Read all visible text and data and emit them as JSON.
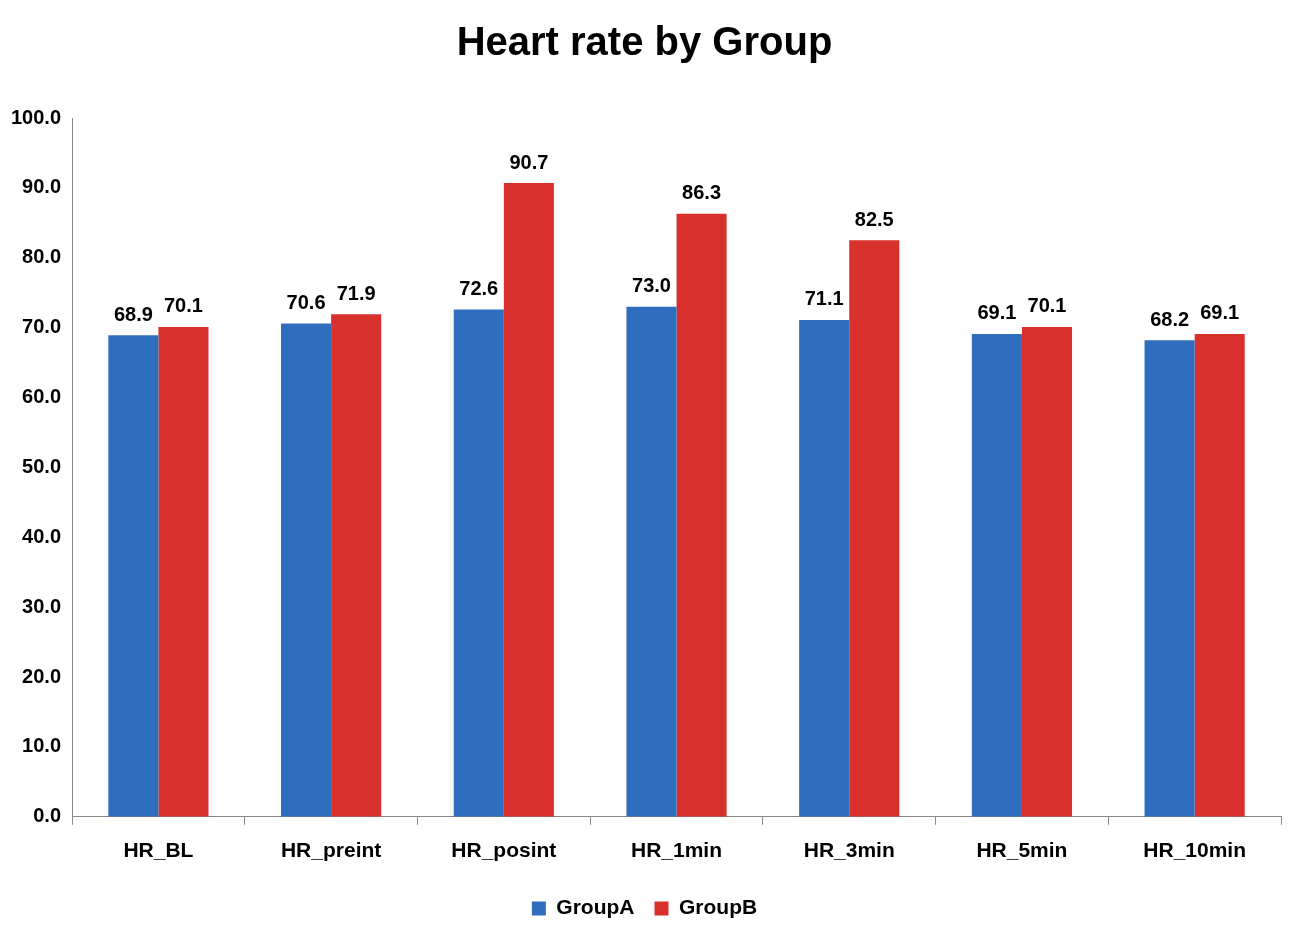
{
  "chart_data": {
    "type": "bar",
    "title": "Heart rate by Group",
    "categories": [
      "HR_BL",
      "HR_preint",
      "HR_posint",
      "HR_1min",
      "HR_3min",
      "HR_5min",
      "HR_10min"
    ],
    "series": [
      {
        "name": "GroupA",
        "color": "#2f6ebf",
        "values": [
          68.9,
          70.6,
          72.6,
          73.0,
          71.1,
          69.1,
          68.2
        ],
        "value_labels": [
          "68.9",
          "70.6",
          "72.6",
          "73.0",
          "71.1",
          "69.1",
          "68.2"
        ]
      },
      {
        "name": "GroupB",
        "color": "#d8312d",
        "values": [
          70.1,
          71.9,
          90.7,
          86.3,
          82.5,
          70.1,
          69.1
        ],
        "value_labels": [
          "70.1",
          "71.9",
          "90.7",
          "86.3",
          "82.5",
          "70.1",
          "69.1"
        ]
      }
    ],
    "ylim": [
      0,
      100
    ],
    "yticks": [
      {
        "value": 0,
        "label": "0.0"
      },
      {
        "value": 10,
        "label": "10.0"
      },
      {
        "value": 20,
        "label": "20.0"
      },
      {
        "value": 30,
        "label": "30.0"
      },
      {
        "value": 40,
        "label": "40.0"
      },
      {
        "value": 50,
        "label": "50.0"
      },
      {
        "value": 60,
        "label": "60.0"
      },
      {
        "value": 70,
        "label": "70.0"
      },
      {
        "value": 80,
        "label": "80.0"
      },
      {
        "value": 90,
        "label": "90.0"
      },
      {
        "value": 100,
        "label": "100.0"
      }
    ],
    "grid": false,
    "legend": "bottom"
  }
}
